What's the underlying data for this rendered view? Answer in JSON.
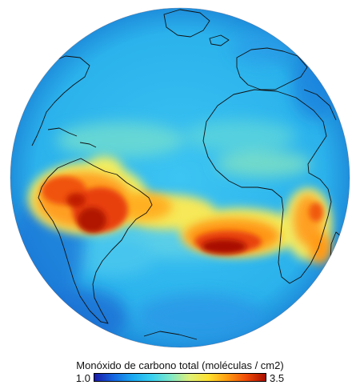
{
  "legend": {
    "title": "Monóxido de carbono total (moléculas / cm2)",
    "min_label": "1.0",
    "max_label": "3.5",
    "min_value": 1.0,
    "max_value": 3.5,
    "colormap": [
      "#1a1aa8",
      "#1565e0",
      "#1aa8f0",
      "#38d0f0",
      "#7ee8c8",
      "#dff078",
      "#ffe030",
      "#ff9a10",
      "#f04a08",
      "#a80e00"
    ]
  },
  "map": {
    "ocean_base_color": "#2cb6ee",
    "coastline_color": "#111111"
  }
}
